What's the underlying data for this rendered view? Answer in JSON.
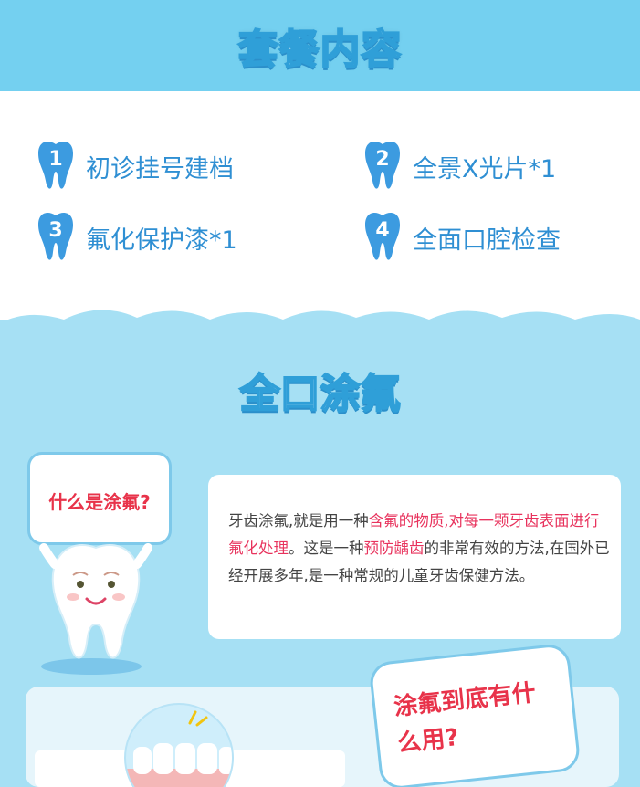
{
  "header": {
    "title": "套餐内容"
  },
  "items": [
    {
      "num": "1",
      "label": "初诊挂号建档"
    },
    {
      "num": "2",
      "label": "全景X光片*1"
    },
    {
      "num": "3",
      "label": "氟化保护漆*1"
    },
    {
      "num": "4",
      "label": "全面口腔检查"
    }
  ],
  "section2": {
    "title": "全口涂氟",
    "question1": "什么是涂氟?",
    "info": {
      "p1": "牙齿涂氟,就是用一种",
      "hl1": "含氟的物质,对每一颗牙齿表面进行氟化处理",
      "p2": "。这是一种",
      "hl2": "预防龋齿",
      "p3": "的非常有效的方法,在国外已经开展多年,是一种常规的儿童牙齿保健方法。"
    },
    "question2": "涂氟到底有什么用?"
  },
  "colors": {
    "header_bg": "#74d0f0",
    "section_bg": "#a6e0f4",
    "accent": "#2f8fd3",
    "highlight": "#e8335d"
  }
}
